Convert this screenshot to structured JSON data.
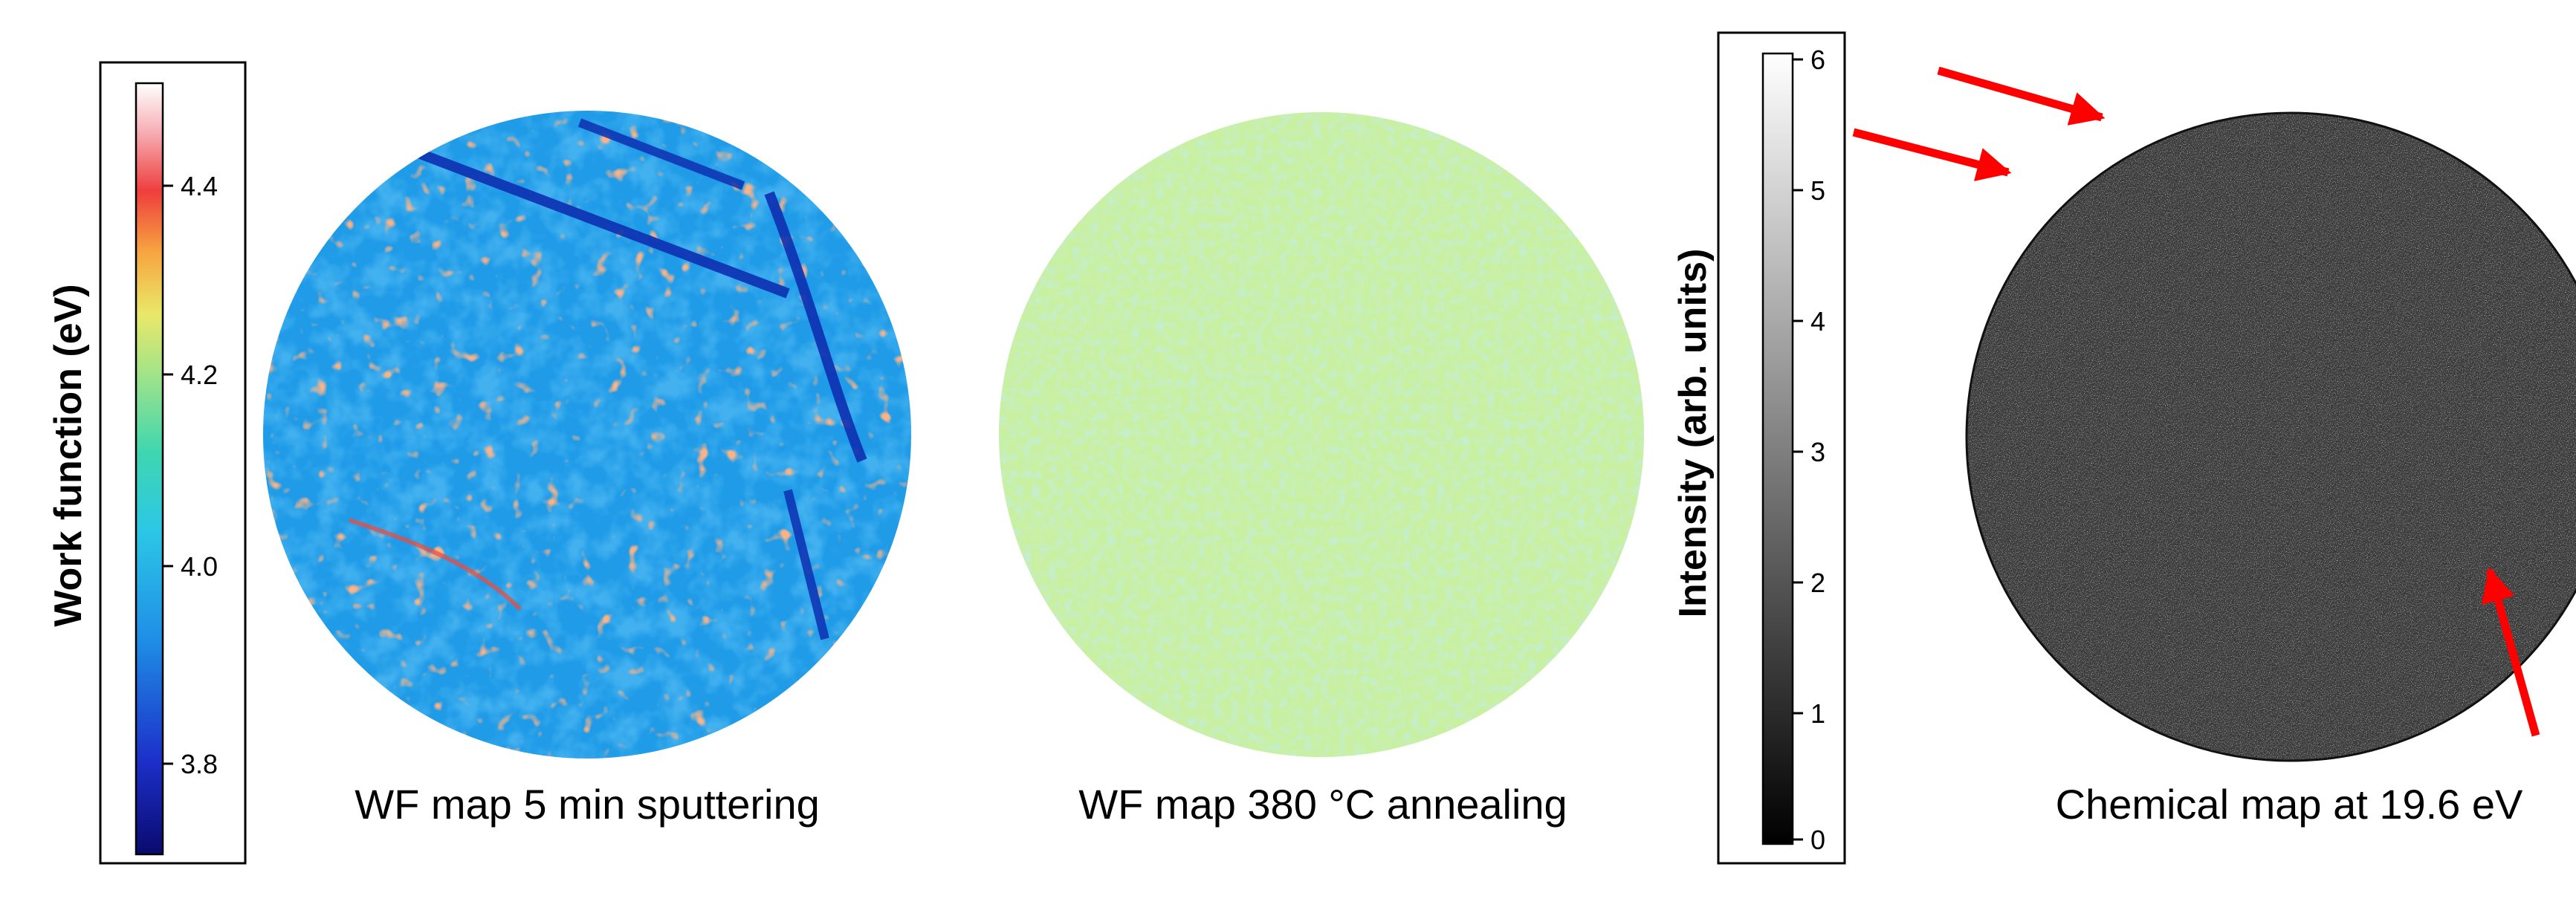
{
  "panels": [
    {
      "caption": "WF map 5 min sputtering",
      "colorbar": {
        "label": "Work function (eV)",
        "ticks": [
          "4.4",
          "4.2",
          "4.0",
          "3.8"
        ],
        "range": [
          3.69,
          4.5
        ],
        "colormap": "jet"
      }
    },
    {
      "caption": "WF map 380 °C annealing"
    },
    {
      "caption": "Chemical map at 19.6 eV",
      "colorbar": {
        "label": "Intensity (arb. units)",
        "ticks": [
          "6",
          "5",
          "4",
          "3",
          "2",
          "1",
          "0"
        ],
        "range": [
          0,
          6
        ],
        "colormap": "grayscale"
      }
    }
  ],
  "colors": {
    "arrows": "#ff0000",
    "annealed_map": "#c9f0a0",
    "chemical_map": "#3a3a3a",
    "sputtered_map": "#1f9be8"
  }
}
